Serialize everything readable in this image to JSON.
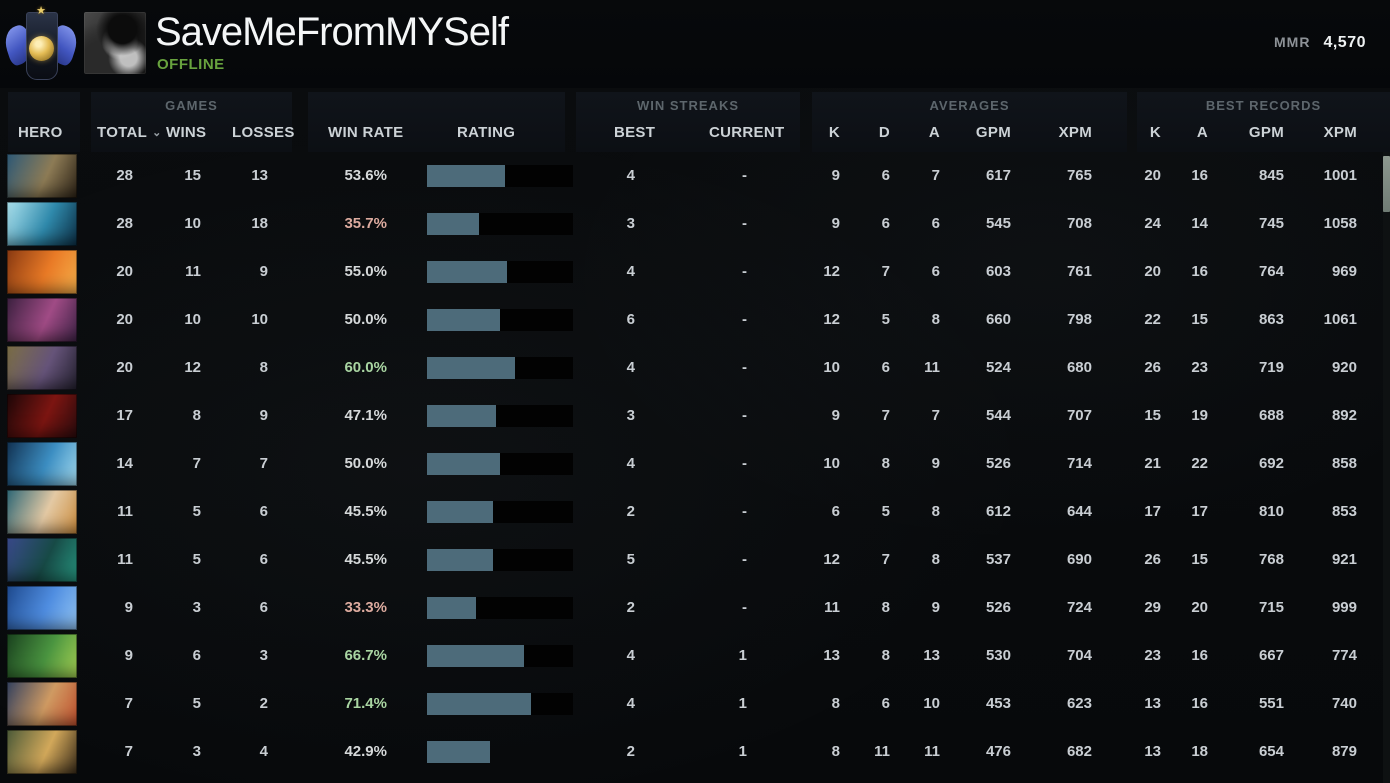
{
  "header": {
    "player_name": "SaveMeFromMYSelf",
    "status": "OFFLINE",
    "mmr_label": "MMR",
    "mmr_value": "4,570",
    "rank_medal_icon": "immortal-rank-medal",
    "avatar_icon": "player-avatar-grayscale-portrait",
    "medal_star_glyph": "★"
  },
  "table": {
    "groups": {
      "games": "GAMES",
      "win_streaks": "WIN STREAKS",
      "averages": "AVERAGES",
      "best_records": "BEST RECORDS"
    },
    "columns": {
      "hero": "HERO",
      "total": "TOTAL",
      "wins": "WINS",
      "losses": "LOSSES",
      "win_rate": "WIN RATE",
      "rating": "RATING",
      "best": "BEST",
      "current": "CURRENT",
      "k": "K",
      "d": "D",
      "a": "A",
      "gpm": "GPM",
      "xpm": "XPM",
      "rec_k": "K",
      "rec_a": "A",
      "rec_gpm": "GPM",
      "rec_xpm": "XPM"
    },
    "sort_indicator_glyph": "⌄",
    "rows": [
      {
        "hero": "meepo",
        "portrait": [
          "#2e5a78",
          "#8d7b55",
          "#2c2216"
        ],
        "total": "28",
        "wins": "15",
        "losses": "13",
        "win_rate": "53.6%",
        "win_rate_tone": "neutral",
        "rating_pct": 53.6,
        "bar_bg": true,
        "best": "4",
        "current": "-",
        "k": "9",
        "d": "6",
        "a": "7",
        "gpm": "617",
        "xpm": "765",
        "rec_k": "20",
        "rec_a": "16",
        "rec_gpm": "845",
        "rec_xpm": "1001"
      },
      {
        "hero": "morphling",
        "portrait": [
          "#ace2ee",
          "#2f89ab",
          "#0c2f45"
        ],
        "total": "28",
        "wins": "10",
        "losses": "18",
        "win_rate": "35.7%",
        "win_rate_tone": "negative",
        "rating_pct": 35.7,
        "bar_bg": true,
        "best": "3",
        "current": "-",
        "k": "9",
        "d": "6",
        "a": "6",
        "gpm": "545",
        "xpm": "708",
        "rec_k": "24",
        "rec_a": "14",
        "rec_gpm": "745",
        "rec_xpm": "1058"
      },
      {
        "hero": "lina",
        "portrait": [
          "#8a3a12",
          "#e97a26",
          "#f7b04a"
        ],
        "total": "20",
        "wins": "11",
        "losses": "9",
        "win_rate": "55.0%",
        "win_rate_tone": "neutral",
        "rating_pct": 55.0,
        "bar_bg": true,
        "best": "4",
        "current": "-",
        "k": "12",
        "d": "7",
        "a": "6",
        "gpm": "603",
        "xpm": "761",
        "rec_k": "20",
        "rec_a": "16",
        "rec_gpm": "764",
        "rec_xpm": "969"
      },
      {
        "hero": "templar-assassin",
        "portrait": [
          "#3c2140",
          "#a04b85",
          "#3f2347"
        ],
        "total": "20",
        "wins": "10",
        "losses": "10",
        "win_rate": "50.0%",
        "win_rate_tone": "neutral",
        "rating_pct": 50.0,
        "bar_bg": true,
        "best": "6",
        "current": "-",
        "k": "12",
        "d": "5",
        "a": "8",
        "gpm": "660",
        "xpm": "798",
        "rec_k": "22",
        "rec_a": "15",
        "rec_gpm": "863",
        "rec_xpm": "1061"
      },
      {
        "hero": "tinker",
        "portrait": [
          "#7c6f45",
          "#655379",
          "#23202e"
        ],
        "total": "20",
        "wins": "12",
        "losses": "8",
        "win_rate": "60.0%",
        "win_rate_tone": "positive",
        "rating_pct": 60.0,
        "bar_bg": true,
        "best": "4",
        "current": "-",
        "k": "10",
        "d": "6",
        "a": "11",
        "gpm": "524",
        "xpm": "680",
        "rec_k": "26",
        "rec_a": "23",
        "rec_gpm": "719",
        "rec_xpm": "920"
      },
      {
        "hero": "shadow-fiend",
        "portrait": [
          "#1d0708",
          "#7c1511",
          "#2b0b0d"
        ],
        "total": "17",
        "wins": "8",
        "losses": "9",
        "win_rate": "47.1%",
        "win_rate_tone": "neutral",
        "rating_pct": 47.1,
        "bar_bg": true,
        "best": "3",
        "current": "-",
        "k": "9",
        "d": "7",
        "a": "7",
        "gpm": "544",
        "xpm": "707",
        "rec_k": "15",
        "rec_a": "19",
        "rec_gpm": "688",
        "rec_xpm": "892"
      },
      {
        "hero": "storm-spirit",
        "portrait": [
          "#123252",
          "#3c8ec2",
          "#a5ddf2"
        ],
        "total": "14",
        "wins": "7",
        "losses": "7",
        "win_rate": "50.0%",
        "win_rate_tone": "neutral",
        "rating_pct": 50.0,
        "bar_bg": true,
        "best": "4",
        "current": "-",
        "k": "10",
        "d": "8",
        "a": "9",
        "gpm": "526",
        "xpm": "714",
        "rec_k": "21",
        "rec_a": "22",
        "rec_gpm": "692",
        "rec_xpm": "858"
      },
      {
        "hero": "naga-siren",
        "portrait": [
          "#2e6877",
          "#e3c9a4",
          "#cd8d3e"
        ],
        "total": "11",
        "wins": "5",
        "losses": "6",
        "win_rate": "45.5%",
        "win_rate_tone": "neutral",
        "rating_pct": 45.5,
        "bar_bg": true,
        "best": "2",
        "current": "-",
        "k": "6",
        "d": "5",
        "a": "8",
        "gpm": "612",
        "xpm": "644",
        "rec_k": "17",
        "rec_a": "17",
        "rec_gpm": "810",
        "rec_xpm": "853"
      },
      {
        "hero": "viper",
        "portrait": [
          "#3a4a8c",
          "#174a46",
          "#27957f"
        ],
        "total": "11",
        "wins": "5",
        "losses": "6",
        "win_rate": "45.5%",
        "win_rate_tone": "neutral",
        "rating_pct": 45.5,
        "bar_bg": true,
        "best": "5",
        "current": "-",
        "k": "12",
        "d": "7",
        "a": "8",
        "gpm": "537",
        "xpm": "690",
        "rec_k": "26",
        "rec_a": "15",
        "rec_gpm": "768",
        "rec_xpm": "921"
      },
      {
        "hero": "puck",
        "portrait": [
          "#1e4a8f",
          "#4f8de0",
          "#93c6f5"
        ],
        "total": "9",
        "wins": "3",
        "losses": "6",
        "win_rate": "33.3%",
        "win_rate_tone": "negative",
        "rating_pct": 33.3,
        "bar_bg": true,
        "best": "2",
        "current": "-",
        "k": "11",
        "d": "8",
        "a": "9",
        "gpm": "526",
        "xpm": "724",
        "rec_k": "29",
        "rec_a": "20",
        "rec_gpm": "715",
        "rec_xpm": "999"
      },
      {
        "hero": "pugna",
        "portrait": [
          "#1a421f",
          "#4a9440",
          "#a6d253"
        ],
        "total": "9",
        "wins": "6",
        "losses": "3",
        "win_rate": "66.7%",
        "win_rate_tone": "positive",
        "rating_pct": 66.7,
        "bar_bg": true,
        "best": "4",
        "current": "1",
        "k": "13",
        "d": "8",
        "a": "13",
        "gpm": "530",
        "xpm": "704",
        "rec_k": "23",
        "rec_a": "16",
        "rec_gpm": "667",
        "rec_xpm": "774"
      },
      {
        "hero": "troll-warlord",
        "portrait": [
          "#344260",
          "#cf9a62",
          "#c2502e"
        ],
        "total": "7",
        "wins": "5",
        "losses": "2",
        "win_rate": "71.4%",
        "win_rate_tone": "positive",
        "rating_pct": 71.4,
        "bar_bg": true,
        "best": "4",
        "current": "1",
        "k": "8",
        "d": "6",
        "a": "10",
        "gpm": "453",
        "xpm": "623",
        "rec_k": "13",
        "rec_a": "16",
        "rec_gpm": "551",
        "rec_xpm": "740"
      },
      {
        "hero": "monkey-king",
        "portrait": [
          "#4c5b39",
          "#d2a85a",
          "#3a2c1a"
        ],
        "total": "7",
        "wins": "3",
        "losses": "4",
        "win_rate": "42.9%",
        "win_rate_tone": "neutral",
        "rating_pct": 42.9,
        "bar_bg": false,
        "best": "2",
        "current": "1",
        "k": "8",
        "d": "11",
        "a": "11",
        "gpm": "476",
        "xpm": "682",
        "rec_k": "13",
        "rec_a": "18",
        "rec_gpm": "654",
        "rec_xpm": "879"
      }
    ]
  },
  "colors": {
    "accent_bar_fill": "#4d6b7a",
    "bar_background": "#020202",
    "win_rate_positive": "#a9d5a2",
    "win_rate_negative": "#ddab9f",
    "status_offline": "#68a33e"
  }
}
